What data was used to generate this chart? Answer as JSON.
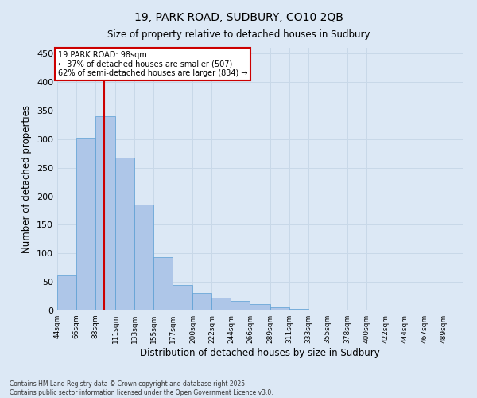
{
  "title_line1": "19, PARK ROAD, SUDBURY, CO10 2QB",
  "title_line2": "Size of property relative to detached houses in Sudbury",
  "xlabel": "Distribution of detached houses by size in Sudbury",
  "ylabel": "Number of detached properties",
  "footer_line1": "Contains HM Land Registry data © Crown copyright and database right 2025.",
  "footer_line2": "Contains public sector information licensed under the Open Government Licence v3.0.",
  "bins": [
    44,
    66,
    88,
    111,
    133,
    155,
    177,
    200,
    222,
    244,
    266,
    289,
    311,
    333,
    355,
    378,
    400,
    422,
    444,
    467,
    489
  ],
  "bin_labels": [
    "44sqm",
    "66sqm",
    "88sqm",
    "111sqm",
    "133sqm",
    "155sqm",
    "177sqm",
    "200sqm",
    "222sqm",
    "244sqm",
    "266sqm",
    "289sqm",
    "311sqm",
    "333sqm",
    "355sqm",
    "378sqm",
    "400sqm",
    "422sqm",
    "444sqm",
    "467sqm",
    "489sqm"
  ],
  "values": [
    62,
    302,
    340,
    267,
    185,
    93,
    45,
    30,
    22,
    17,
    11,
    5,
    3,
    2,
    2,
    1,
    0,
    0,
    1,
    0,
    1
  ],
  "bar_color": "#aec6e8",
  "bar_edge_color": "#5a9fd4",
  "grid_color": "#c8d8e8",
  "property_size": 98,
  "annotation_line1": "19 PARK ROAD: 98sqm",
  "annotation_line2": "← 37% of detached houses are smaller (507)",
  "annotation_line3": "62% of semi-detached houses are larger (834) →",
  "vline_color": "#cc0000",
  "annotation_box_color": "#ffffff",
  "annotation_box_edge": "#cc0000",
  "ylim": [
    0,
    460
  ],
  "yticks": [
    0,
    50,
    100,
    150,
    200,
    250,
    300,
    350,
    400,
    450
  ],
  "bg_color": "#dce8f5"
}
